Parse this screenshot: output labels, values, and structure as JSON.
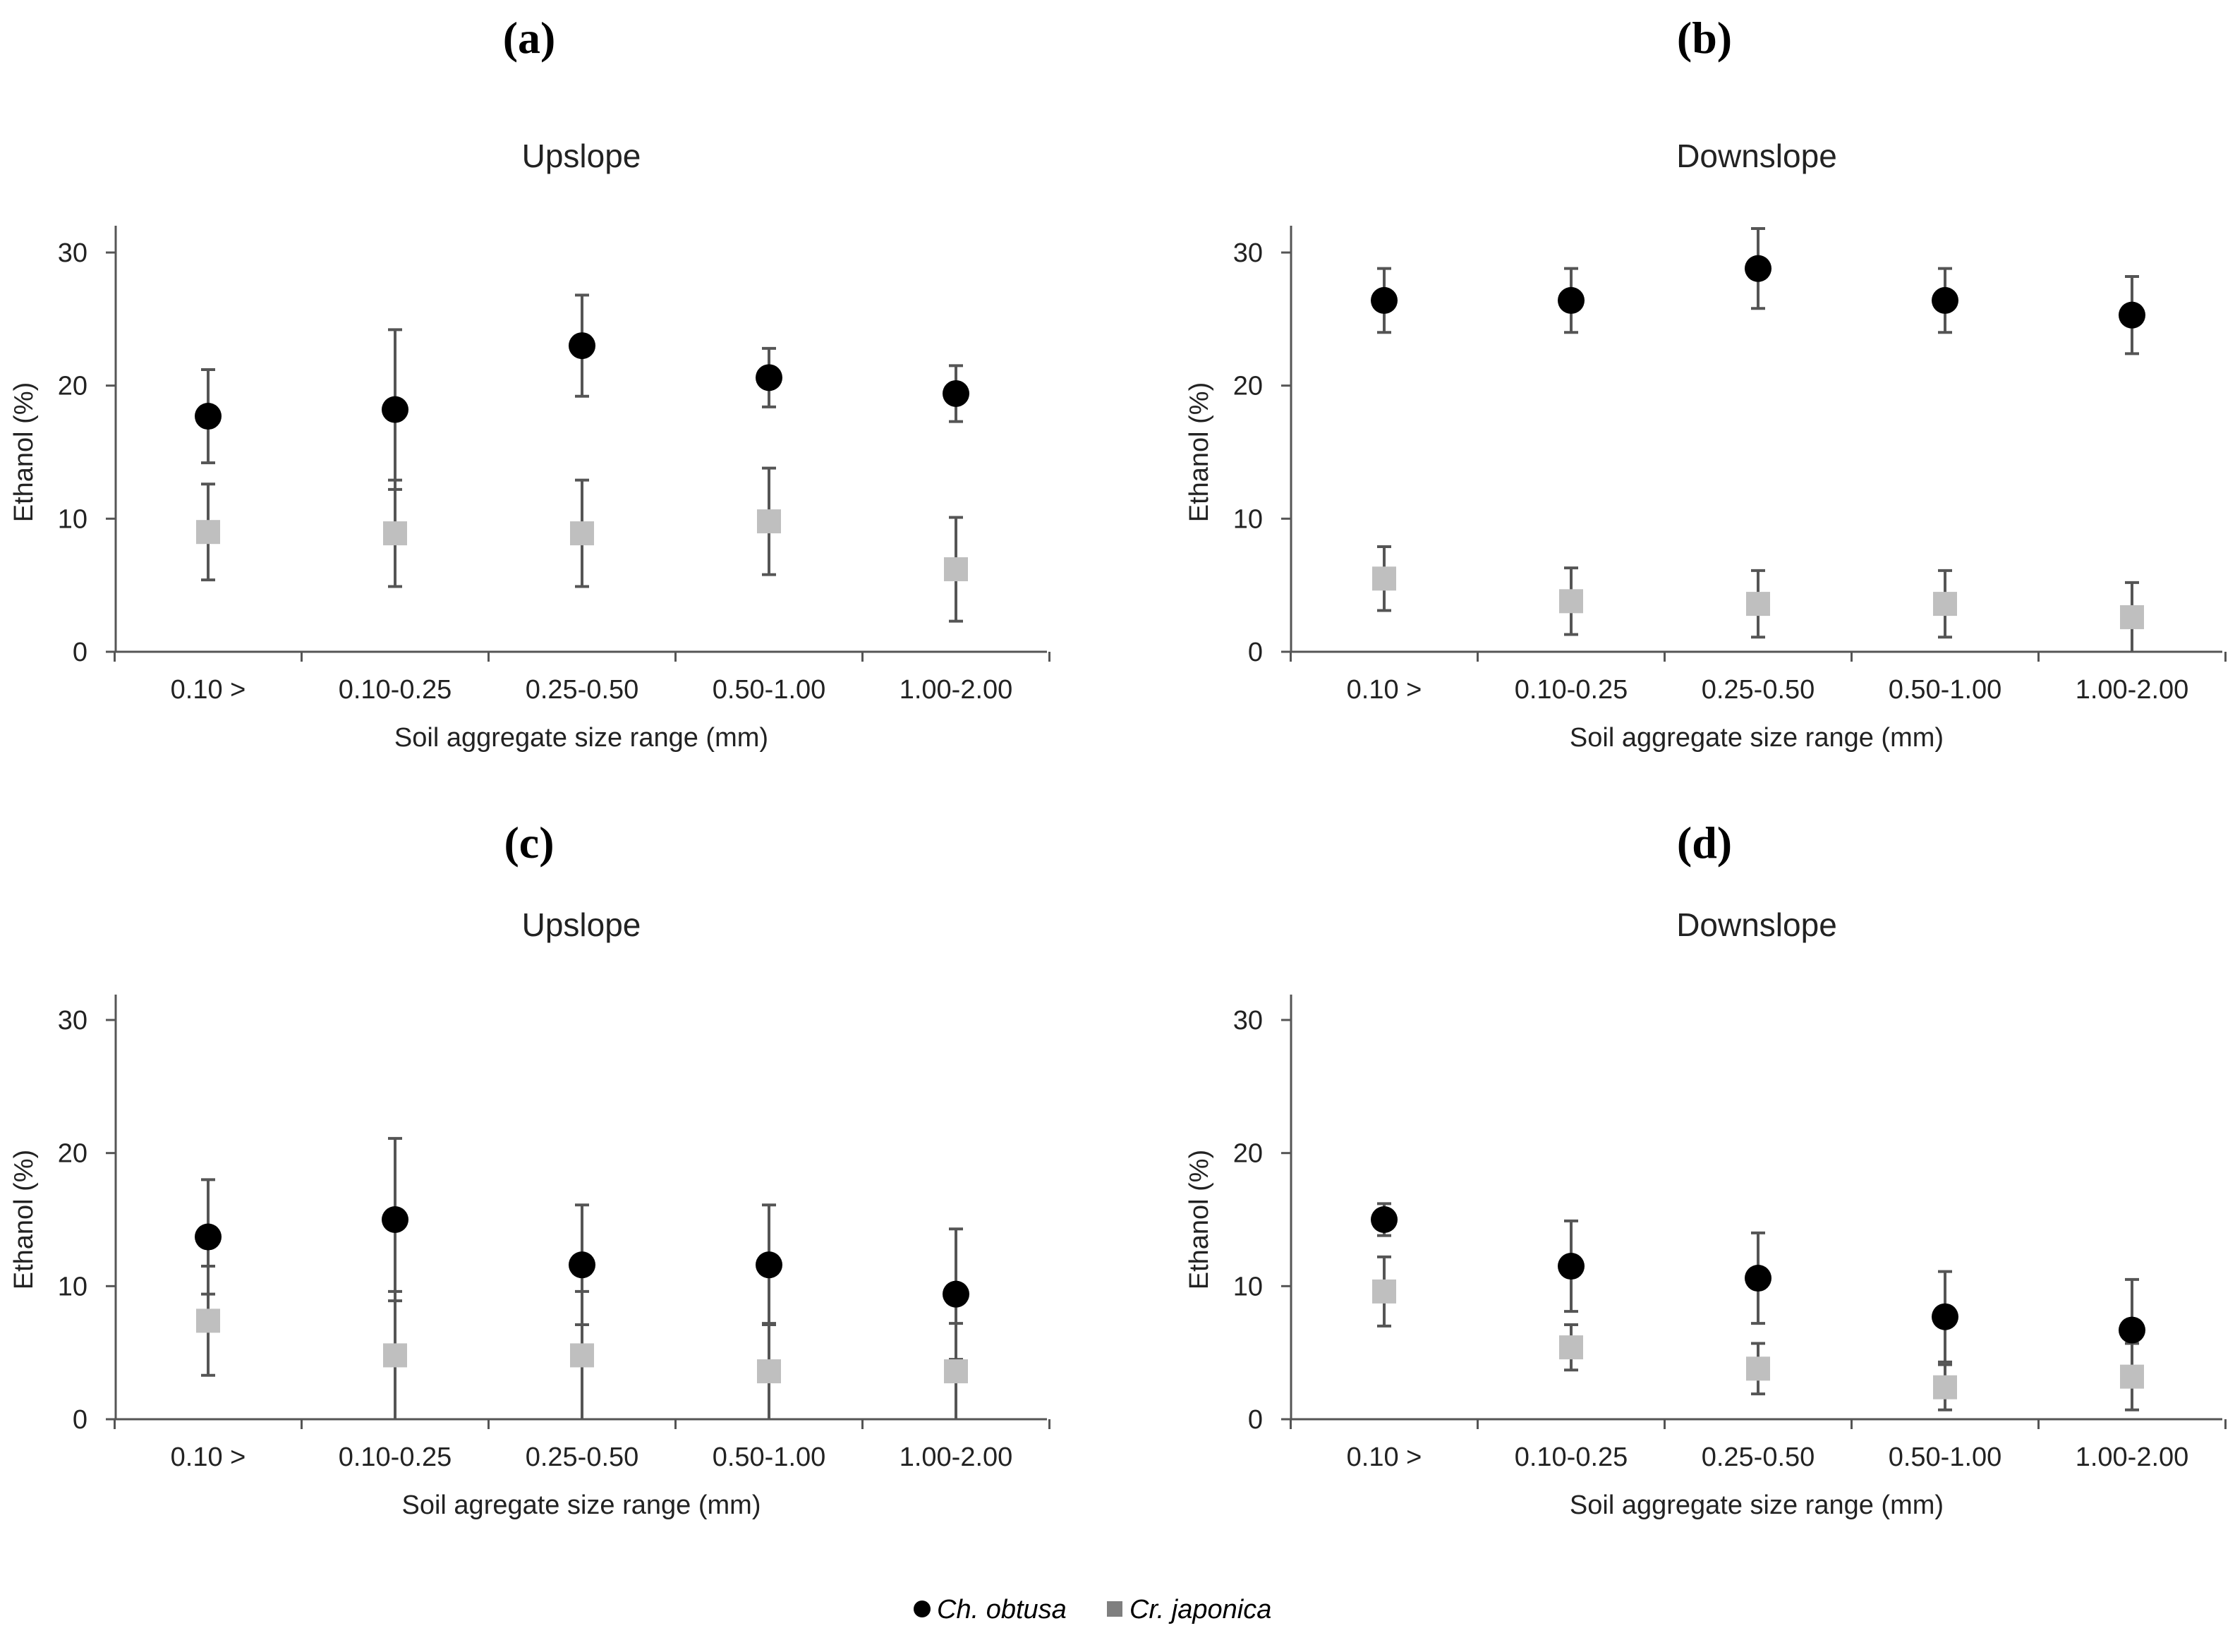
{
  "figure": {
    "legend": [
      {
        "name": "Ch. obtusa",
        "marker": "circle",
        "color": "#000000"
      },
      {
        "name": "Cr. japonica",
        "marker": "square",
        "color": "#bfbfbf"
      }
    ],
    "legend_marker_color_text_square": "#7f7f7f"
  },
  "chart_data": [
    {
      "panel": "(a)",
      "type": "scatter",
      "title": "Upslope",
      "xlabel": "Soil aggregate size range (mm)",
      "ylabel": "Ethanol (%)",
      "categories": [
        "0.10 >",
        "0.10-0.25",
        "0.25-0.50",
        "0.50-1.00",
        "1.00-2.00"
      ],
      "ylim": [
        0,
        30
      ],
      "yticks": [
        0,
        10,
        20,
        30
      ],
      "series": [
        {
          "name": "Ch. obtusa",
          "values": [
            17.7,
            18.2,
            23.0,
            20.6,
            19.4
          ],
          "error": [
            3.5,
            6.0,
            3.8,
            2.2,
            2.1
          ]
        },
        {
          "name": "Cr. japonica",
          "values": [
            9.0,
            8.9,
            8.9,
            9.8,
            6.2
          ],
          "error": [
            3.6,
            4.0,
            4.0,
            4.0,
            3.9
          ]
        }
      ]
    },
    {
      "panel": "(b)",
      "type": "scatter",
      "title": "Downslope",
      "xlabel": "Soil aggregate size range (mm)",
      "ylabel": "Ethanol (%)",
      "categories": [
        "0.10 >",
        "0.10-0.25",
        "0.25-0.50",
        "0.50-1.00",
        "1.00-2.00"
      ],
      "ylim": [
        0,
        30
      ],
      "yticks": [
        0,
        10,
        20,
        30
      ],
      "series": [
        {
          "name": "Ch. obtusa",
          "values": [
            26.4,
            26.4,
            28.8,
            26.4,
            25.3
          ],
          "error": [
            2.4,
            2.4,
            3.0,
            2.4,
            2.9
          ]
        },
        {
          "name": "Cr. japonica",
          "values": [
            5.5,
            3.8,
            3.6,
            3.6,
            2.6
          ],
          "error": [
            2.4,
            2.5,
            2.5,
            2.5,
            2.6
          ]
        }
      ]
    },
    {
      "panel": "(c)",
      "type": "scatter",
      "title": "Upslope",
      "xlabel": "Soil agregate size range (mm)",
      "ylabel": "Ethanol (%)",
      "categories": [
        "0.10 >",
        "0.10-0.25",
        "0.25-0.50",
        "0.50-1.00",
        "1.00-2.00"
      ],
      "ylim": [
        0,
        30
      ],
      "yticks": [
        0,
        10,
        20,
        30
      ],
      "series": [
        {
          "name": "Ch. obtusa",
          "values": [
            13.7,
            15.0,
            11.6,
            11.6,
            9.4
          ],
          "error": [
            4.3,
            6.1,
            4.5,
            4.5,
            4.9
          ]
        },
        {
          "name": "Cr. japonica",
          "values": [
            7.4,
            4.8,
            4.8,
            3.6,
            3.6
          ],
          "error": [
            4.1,
            4.8,
            4.8,
            3.6,
            3.6
          ]
        }
      ]
    },
    {
      "panel": "(d)",
      "type": "scatter",
      "title": "Downslope",
      "xlabel": "Soil aggregate size range (mm)",
      "ylabel": "Ethanol (%)",
      "categories": [
        "0.10 >",
        "0.10-0.25",
        "0.25-0.50",
        "0.50-1.00",
        "1.00-2.00"
      ],
      "ylim": [
        0,
        30
      ],
      "yticks": [
        0,
        10,
        20,
        30
      ],
      "series": [
        {
          "name": "Ch. obtusa",
          "values": [
            15.0,
            11.5,
            10.6,
            7.7,
            6.7
          ],
          "error": [
            1.2,
            3.4,
            3.4,
            3.4,
            3.8
          ]
        },
        {
          "name": "Cr. japonica",
          "values": [
            9.6,
            5.4,
            3.8,
            2.4,
            3.2
          ],
          "error": [
            2.6,
            1.7,
            1.9,
            1.7,
            2.5
          ]
        }
      ]
    }
  ]
}
